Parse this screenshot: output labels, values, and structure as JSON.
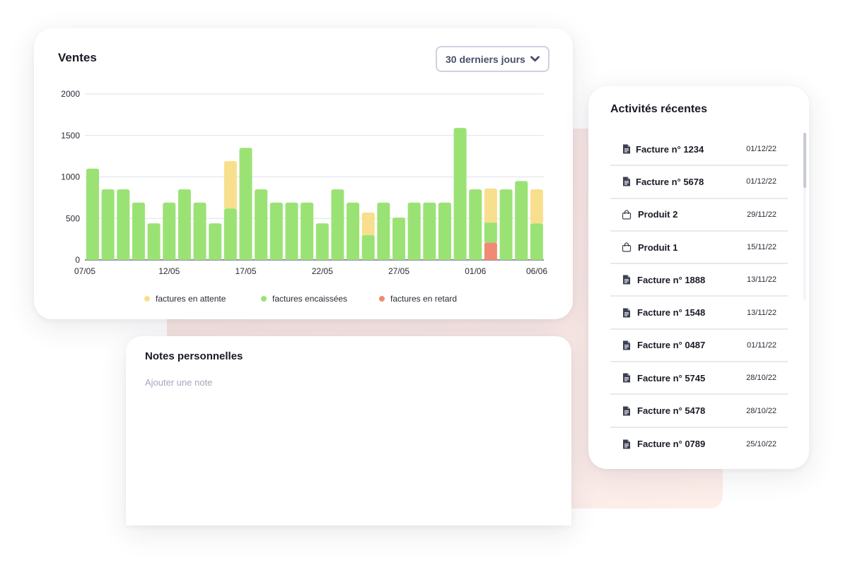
{
  "sales": {
    "title": "Ventes",
    "period_select": {
      "value": "30 derniers jours"
    }
  },
  "chart_data": {
    "type": "bar",
    "stacked": true,
    "x": [
      "07/05",
      "08/05",
      "09/05",
      "10/05",
      "11/05",
      "12/05",
      "13/05",
      "14/05",
      "15/05",
      "16/05",
      "17/05",
      "18/05",
      "19/05",
      "20/05",
      "21/05",
      "22/05",
      "23/05",
      "24/05",
      "25/05",
      "26/05",
      "27/05",
      "28/05",
      "29/05",
      "30/05",
      "31/05",
      "01/06",
      "02/06",
      "03/06",
      "04/06",
      "05/06",
      "06/06"
    ],
    "x_tick_labels": [
      "07/05",
      "12/05",
      "17/05",
      "22/05",
      "27/05",
      "01/06",
      "06/06"
    ],
    "series": [
      {
        "name": "factures encaissées",
        "color": "#9be275",
        "values": [
          1100,
          850,
          850,
          690,
          440,
          690,
          850,
          690,
          440,
          620,
          1350,
          850,
          690,
          690,
          690,
          440,
          850,
          690,
          300,
          690,
          510,
          690,
          690,
          690,
          1590,
          850,
          240,
          850,
          950,
          440,
          0
        ]
      },
      {
        "name": "factures en attente",
        "color": "#f8df8d",
        "values": [
          0,
          0,
          0,
          0,
          0,
          0,
          0,
          0,
          0,
          570,
          0,
          0,
          0,
          0,
          0,
          0,
          0,
          0,
          270,
          0,
          0,
          0,
          0,
          0,
          0,
          0,
          410,
          0,
          0,
          410,
          0
        ]
      },
      {
        "name": "factures en retard",
        "color": "#f08a73",
        "values": [
          0,
          0,
          0,
          0,
          0,
          0,
          0,
          0,
          0,
          0,
          0,
          0,
          0,
          0,
          0,
          0,
          0,
          0,
          0,
          0,
          0,
          0,
          0,
          0,
          0,
          0,
          210,
          0,
          0,
          0,
          0
        ]
      }
    ],
    "yticks": [
      0,
      500,
      1000,
      1500,
      2000
    ],
    "ylim": [
      0,
      2000
    ],
    "grid": true,
    "legend_position": "bottom",
    "legend_order": [
      "factures en attente",
      "factures encaissées",
      "factures en retard"
    ]
  },
  "notes": {
    "title": "Notes personnelles",
    "placeholder": "Ajouter une note"
  },
  "activity": {
    "title": "Activités récentes",
    "items": [
      {
        "icon": "invoice-icon",
        "label": "Facture n° 1234",
        "date": "01/12/22"
      },
      {
        "icon": "invoice-icon",
        "label": "Facture n° 5678",
        "date": "01/12/22"
      },
      {
        "icon": "shopping-bag-icon",
        "label": "Produit 2",
        "date": "29/11/22"
      },
      {
        "icon": "shopping-bag-icon",
        "label": "Produit 1",
        "date": "15/11/22"
      },
      {
        "icon": "invoice-icon",
        "label": "Facture n° 1888",
        "date": "13/11/22"
      },
      {
        "icon": "invoice-icon",
        "label": "Facture n° 1548",
        "date": "13/11/22"
      },
      {
        "icon": "invoice-icon",
        "label": "Facture n° 0487",
        "date": "01/11/22"
      },
      {
        "icon": "invoice-icon",
        "label": "Facture n° 5745",
        "date": "28/10/22"
      },
      {
        "icon": "invoice-icon",
        "label": "Facture n° 5478",
        "date": "28/10/22"
      },
      {
        "icon": "invoice-icon",
        "label": "Facture n° 0789",
        "date": "25/10/22"
      }
    ]
  },
  "colors": {
    "text_primary": "#1a1a26",
    "placeholder": "#a3a8bd",
    "select_border": "#cdd2e0",
    "background_accent": "#f6e3e1"
  }
}
